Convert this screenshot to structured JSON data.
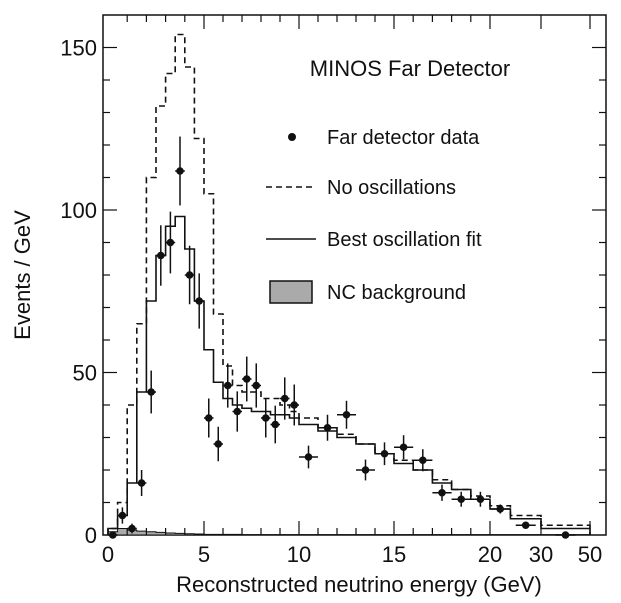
{
  "chart_data": {
    "type": "line",
    "title": "MINOS Far Detector",
    "xlabel": "Reconstructed neutrino energy (GeV)",
    "ylabel": "Events / GeV",
    "xlim": [
      0,
      60
    ],
    "ylim": [
      0,
      160
    ],
    "x_scale": "piecewise: linear 0-20 GeV over first 4/5 of axis, then 20-60 GeV compressed",
    "x_ticks": [
      0,
      5,
      10,
      15,
      20,
      30,
      50
    ],
    "x_tick_labels": [
      "0",
      "5",
      "10",
      "15",
      "20",
      "30",
      "50"
    ],
    "y_ticks": [
      0,
      50,
      100,
      150
    ],
    "y_tick_labels": [
      "0",
      "50",
      "100",
      "150"
    ],
    "legend_position": "top-right",
    "grid": false,
    "bin_edges": [
      0,
      0.5,
      1,
      1.5,
      2,
      2.5,
      3,
      3.5,
      4,
      4.5,
      5,
      5.5,
      6,
      6.5,
      7,
      7.5,
      8,
      8.5,
      9,
      9.5,
      10,
      11,
      12,
      13,
      14,
      15,
      16,
      17,
      18,
      19,
      20,
      24,
      30,
      50
    ],
    "series": [
      {
        "name": "Far detector data",
        "style": "points-with-errors",
        "x": [
          0.25,
          0.75,
          1.25,
          1.75,
          2.25,
          2.75,
          3.25,
          3.75,
          4.25,
          4.75,
          5.25,
          5.75,
          6.25,
          6.75,
          7.25,
          7.75,
          8.25,
          8.75,
          9.25,
          9.75,
          10.5,
          11.5,
          12.5,
          13.5,
          14.5,
          15.5,
          16.5,
          17.5,
          18.5,
          19.5,
          22,
          27,
          40
        ],
        "values": [
          0,
          6,
          2,
          16,
          44,
          86,
          90,
          112,
          80,
          72,
          36,
          28,
          46,
          38,
          48,
          46,
          36,
          34,
          42,
          40,
          24,
          33,
          37,
          20,
          25,
          27,
          23,
          13,
          11,
          11,
          8,
          3,
          0
        ],
        "errors": [
          0.5,
          2.5,
          1.5,
          4,
          6.6,
          9.3,
          9.5,
          10.6,
          9,
          8.5,
          6,
          5.3,
          6.8,
          6.2,
          6.9,
          6.8,
          6,
          5.8,
          6.5,
          6.3,
          3.5,
          4,
          4.3,
          3.2,
          3.5,
          3.7,
          3.4,
          2.5,
          2.3,
          2.3,
          1.4,
          0.9,
          0.5
        ]
      },
      {
        "name": "No oscillations",
        "style": "dashed-step",
        "values": [
          2,
          10,
          40,
          65,
          110,
          132,
          142,
          154,
          144,
          122,
          105,
          68,
          52,
          46,
          44,
          44,
          42,
          42,
          40,
          38,
          36,
          33,
          31,
          28,
          25,
          23,
          20,
          17,
          14,
          12,
          9,
          6,
          3
        ]
      },
      {
        "name": "Best oscillation fit",
        "style": "solid-step",
        "values": [
          2,
          6,
          16,
          44,
          72,
          86,
          95,
          98,
          88,
          72,
          57,
          47,
          42,
          40,
          39,
          38,
          38,
          37,
          37,
          36,
          34,
          32,
          30,
          28,
          25,
          22,
          20,
          16,
          14,
          11,
          8,
          5,
          2
        ]
      },
      {
        "name": "NC background",
        "style": "filled-gray",
        "values": [
          1,
          2,
          1.5,
          1.2,
          1,
          0.8,
          0.6,
          0.5,
          0.4,
          0.3,
          0.2,
          0.2,
          0.2,
          0.2,
          0.1,
          0.1,
          0.1,
          0.1,
          0.1,
          0.1,
          0.1,
          0.1,
          0.1,
          0.1,
          0.1,
          0.1,
          0.1,
          0.1,
          0.1,
          0.1,
          0.1,
          0.1,
          0.1
        ]
      }
    ],
    "colors": {
      "data": "#111111",
      "no_oscillations": "#111111",
      "best_fit": "#111111",
      "nc_background_fill": "#aaaaaa"
    }
  }
}
